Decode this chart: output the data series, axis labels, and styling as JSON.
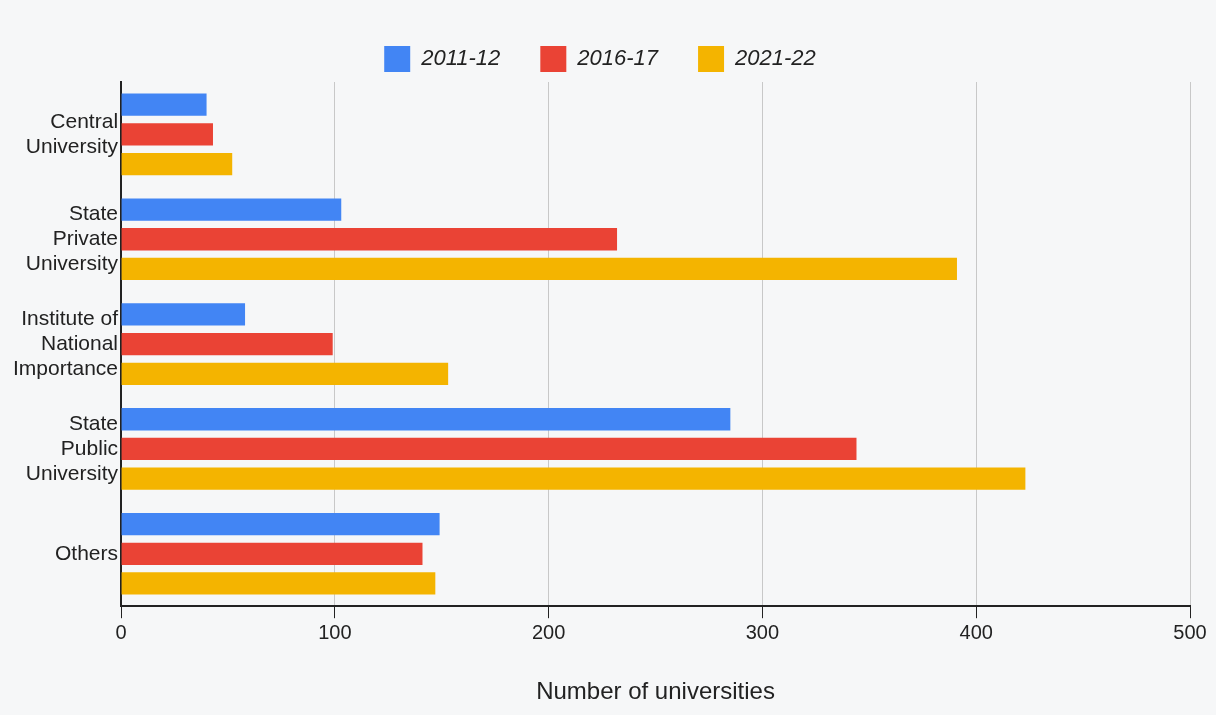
{
  "chart_data": {
    "type": "bar",
    "orientation": "horizontal",
    "xlabel": "Number of universities",
    "categories": [
      "Central University",
      "State Private University",
      "Institute of National Importance",
      "State Public University",
      "Others"
    ],
    "series": [
      {
        "name": "2011-12",
        "color": "#4285f4",
        "values": [
          40,
          103,
          58,
          285,
          149
        ]
      },
      {
        "name": "2016-17",
        "color": "#ea4335",
        "values": [
          43,
          232,
          99,
          344,
          141
        ]
      },
      {
        "name": "2021-22",
        "color": "#f4b400",
        "values": [
          52,
          391,
          153,
          423,
          147
        ]
      }
    ],
    "xlim": [
      0,
      500
    ],
    "xticks": [
      0,
      100,
      200,
      300,
      400,
      500
    ],
    "grid": "x",
    "legend": "top"
  }
}
